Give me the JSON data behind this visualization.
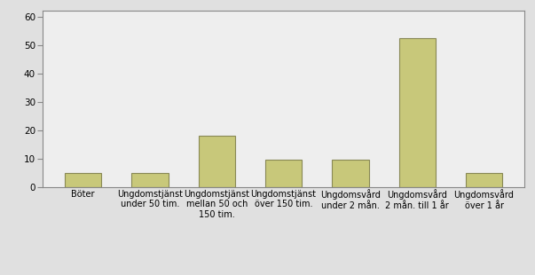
{
  "categories": [
    "Böter",
    "Ungdomstjänst\nunder 50 tim.",
    "Ungdomstjänst\nmellan 50 och\n150 tim.",
    "Ungdomstjänst\növer 150 tim.",
    "Ungdomsvård\nunder 2 mån.",
    "Ungdomsvård\n2 mån. till 1 år",
    "Ungdomsvård\növer 1 år"
  ],
  "values": [
    5,
    5,
    18,
    9.5,
    9.5,
    52.5,
    5
  ],
  "bar_color": "#c8c87a",
  "bar_edge_color": "#888855",
  "plot_bg_color": "#eeeeee",
  "fig_bg_color": "#e0e0e0",
  "ylim": [
    0,
    62
  ],
  "yticks": [
    0,
    10,
    20,
    30,
    40,
    50,
    60
  ],
  "tick_fontsize": 7.5,
  "label_fontsize": 7.0,
  "bar_width": 0.55
}
